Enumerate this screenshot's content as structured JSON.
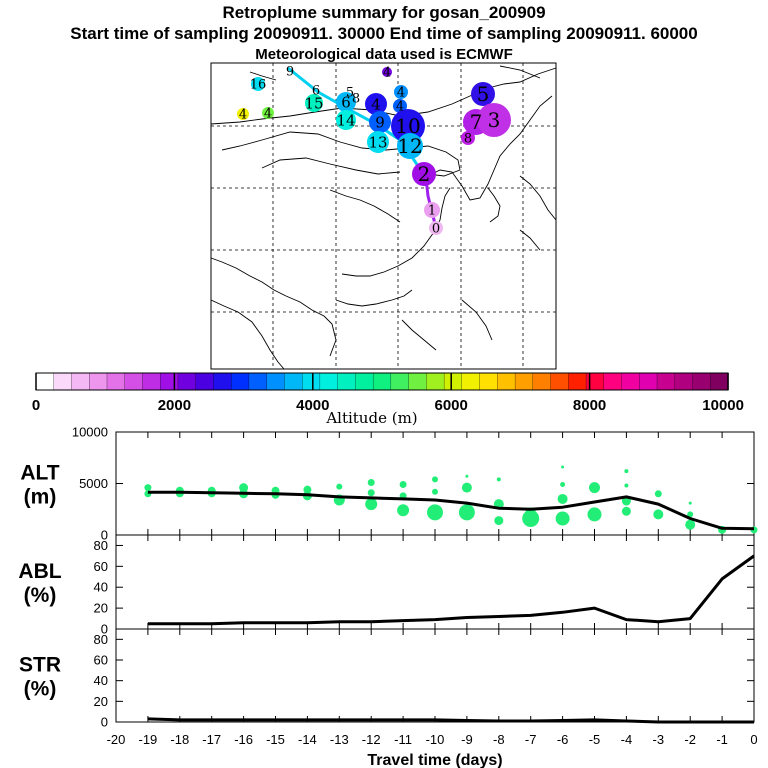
{
  "header": {
    "title": "Retroplume summary for gosan_200909",
    "sampling": "Start time of sampling 20090911. 30000     End time of sampling 20090911. 60000",
    "met": "Meteorological data used is ECMWF"
  },
  "colors": {
    "plume_green": "#22ee77",
    "mean_line": "#000000",
    "track_cyan": "#00d0f0",
    "track_purple": "#a020f0"
  },
  "map": {
    "labels": [
      {
        "text": "9"
      },
      {
        "text": "6"
      },
      {
        "text": "5"
      },
      {
        "text": "4"
      },
      {
        "text": "4"
      },
      {
        "text": "5"
      },
      {
        "text": "16"
      },
      {
        "text": "4"
      },
      {
        "text": "4"
      },
      {
        "text": "15"
      },
      {
        "text": "4"
      },
      {
        "text": "6"
      },
      {
        "text": "4"
      },
      {
        "text": "8"
      },
      {
        "text": "14"
      },
      {
        "text": "9"
      },
      {
        "text": "10"
      },
      {
        "text": "7"
      },
      {
        "text": "3"
      },
      {
        "text": "8"
      },
      {
        "text": "13"
      },
      {
        "text": "12"
      },
      {
        "text": "2"
      },
      {
        "text": "1"
      },
      {
        "text": "0"
      }
    ]
  },
  "colorbar": {
    "tick_labels": [
      "0",
      "2000",
      "4000",
      "6000",
      "8000",
      "10000"
    ],
    "label": "Altitude (m)",
    "colors": [
      "#ffffff",
      "#fad9fa",
      "#f4b8f4",
      "#ee96ee",
      "#e372e8",
      "#d44fe6",
      "#be2de4",
      "#a010e6",
      "#7000e0",
      "#4a00e0",
      "#2010ee",
      "#0030ff",
      "#0060ff",
      "#0090ff",
      "#00b8f8",
      "#00dcf0",
      "#00f0e0",
      "#00f0c0",
      "#00f0a0",
      "#10f080",
      "#40f060",
      "#70f040",
      "#a0f020",
      "#d0f000",
      "#f0f000",
      "#ffe000",
      "#ffc000",
      "#ffa000",
      "#ff8000",
      "#ff5000",
      "#ff2000",
      "#ff0040",
      "#ff0080",
      "#f000a0",
      "#e000b0",
      "#c80090",
      "#b00080",
      "#980070",
      "#800060"
    ]
  },
  "chart_data": [
    {
      "type": "scatter",
      "panel": "ALT",
      "ylabel_line1": "ALT",
      "ylabel_line2": "(m)",
      "ylim": [
        0,
        10000
      ],
      "yticks": [
        "0",
        "5000",
        "10000"
      ],
      "xlim": [
        -20,
        0
      ],
      "mean_line": {
        "x": [
          0,
          -1,
          -2,
          -3,
          -4,
          -5,
          -6,
          -7,
          -8,
          -9,
          -10,
          -11,
          -12,
          -13,
          -14,
          -15,
          -16,
          -17,
          -18,
          -19
        ],
        "y": [
          600,
          650,
          1600,
          3000,
          3700,
          3200,
          2700,
          2500,
          2600,
          3100,
          3400,
          3500,
          3600,
          3700,
          3900,
          4000,
          4050,
          4100,
          4150,
          4150
        ]
      }
    },
    {
      "type": "line",
      "panel": "ABL",
      "ylabel_line1": "ABL",
      "ylabel_line2": "(%)",
      "ylim": [
        0,
        90
      ],
      "yticks": [
        "0",
        "20",
        "40",
        "60",
        "80"
      ],
      "xlim": [
        -20,
        0
      ],
      "x": [
        0,
        -1,
        -2,
        -3,
        -4,
        -5,
        -6,
        -7,
        -8,
        -9,
        -10,
        -11,
        -12,
        -13,
        -14,
        -15,
        -16,
        -17,
        -18,
        -19
      ],
      "y": [
        70,
        48,
        10,
        7,
        9,
        20,
        16,
        13,
        12,
        11,
        9,
        8,
        7,
        7,
        6,
        6,
        6,
        5,
        5,
        5
      ]
    },
    {
      "type": "line",
      "panel": "STR",
      "ylabel_line1": "STR",
      "ylabel_line2": "(%)",
      "ylim": [
        0,
        90
      ],
      "yticks": [
        "0",
        "20",
        "40",
        "60",
        "80"
      ],
      "xlim": [
        -20,
        0
      ],
      "xlabel": "Travel time (days)",
      "xtick_labels": [
        "-20",
        "-19",
        "-18",
        "-17",
        "-16",
        "-15",
        "-14",
        "-13",
        "-12",
        "-11",
        "-10",
        "-9",
        "-8",
        "-7",
        "-6",
        "-5",
        "-4",
        "-3",
        "-2",
        "-1",
        "0"
      ],
      "x": [
        0,
        -1,
        -2,
        -3,
        -4,
        -5,
        -6,
        -7,
        -8,
        -9,
        -10,
        -11,
        -12,
        -13,
        -14,
        -15,
        -16,
        -17,
        -18,
        -19
      ],
      "y": [
        0,
        0,
        0,
        0,
        1,
        2,
        1.5,
        1,
        1,
        1.5,
        2,
        2,
        2,
        2,
        2,
        2,
        2,
        2,
        2,
        3
      ]
    }
  ]
}
